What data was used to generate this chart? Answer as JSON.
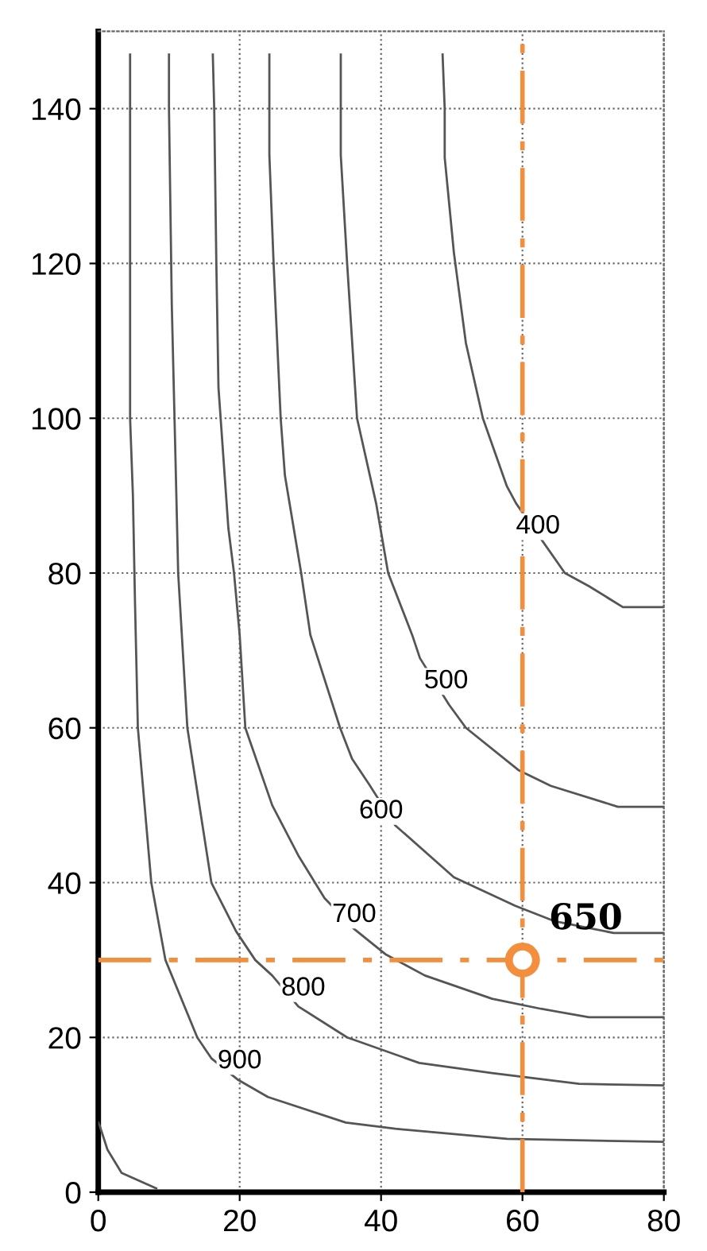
{
  "chart_data": {
    "type": "line",
    "xlim": [
      0,
      80
    ],
    "ylim": [
      0,
      150
    ],
    "xticks": [
      0,
      20,
      40,
      60,
      80
    ],
    "yticks": [
      0,
      20,
      40,
      60,
      80,
      100,
      120,
      140
    ],
    "grid": true,
    "line_style": "solid",
    "series": [
      {
        "color": "#555555",
        "x": [
          0,
          0.2,
          1.3,
          3.3,
          8.2
        ],
        "values": [
          9,
          8.6,
          5.5,
          2.5,
          0.5
        ]
      },
      {
        "color": "#555555",
        "x": [
          4.5,
          4.5,
          4.9,
          5.2,
          5.6,
          7.5,
          9.5,
          14,
          16,
          19.8,
          24,
          35,
          42,
          57.8,
          80
        ],
        "values": [
          147,
          100,
          90,
          76,
          60,
          40,
          30,
          20,
          17.3,
          14.5,
          12.3,
          9,
          8.2,
          6.9,
          6.5
        ]
      },
      {
        "color": "#555555",
        "x": [
          10,
          10,
          10.4,
          10.9,
          11.3,
          12.6,
          16,
          19.5,
          22.2,
          24.6,
          28.3,
          35.2,
          45.4,
          55.7,
          68,
          80
        ],
        "values": [
          147,
          140,
          114.6,
          95.6,
          80,
          60,
          40,
          33.7,
          30,
          28,
          24,
          20,
          16.7,
          15.4,
          14,
          13.8
        ]
      },
      {
        "color": "#555555",
        "x": [
          16.2,
          16.4,
          16.7,
          17,
          18.4,
          19.2,
          20,
          20.8,
          24.6,
          28.3,
          32,
          36.2,
          40.7,
          46.2,
          55.7,
          62.6,
          69.4,
          80
        ],
        "values": [
          147,
          140,
          120,
          104,
          85.8,
          80,
          72,
          60,
          50,
          43.5,
          38,
          34,
          30.7,
          28,
          25,
          23.7,
          22.6,
          22.6
        ]
      },
      {
        "color": "#555555",
        "x": [
          24.2,
          24.2,
          24.2,
          24.8,
          25.8,
          26.4,
          28.7,
          30,
          34.2,
          35.9,
          38.3,
          42,
          50.3,
          59,
          64.6,
          72.9,
          80
        ],
        "values": [
          147,
          140,
          134,
          120,
          100,
          92.6,
          80,
          72,
          60,
          56,
          52.7,
          47.4,
          40.7,
          37,
          35,
          33.5,
          33.5
        ]
      },
      {
        "color": "#555555",
        "x": [
          34.3,
          34.3,
          34.3,
          35.2,
          36.6,
          39.3,
          41,
          44.4,
          45.5,
          49.6,
          52,
          59.5,
          64,
          73.5,
          80
        ],
        "values": [
          147,
          140,
          134,
          120,
          100,
          89,
          80,
          72,
          69,
          63,
          60,
          54.5,
          52.5,
          49.8,
          49.8
        ]
      },
      {
        "color": "#555555",
        "x": [
          48.7,
          49,
          49,
          50.3,
          52,
          54.4,
          57.8,
          59.1,
          66,
          69.4,
          74.2,
          80
        ],
        "values": [
          147,
          140,
          133.7,
          121.4,
          109.7,
          100,
          91.2,
          89,
          80,
          78.3,
          75.6,
          75.6
        ]
      },
      {
        "type": "scatter",
        "color": "#f28e3c",
        "marker": "circle",
        "x": [
          60
        ],
        "values": [
          30
        ]
      }
    ],
    "ref_lines": [
      {
        "axis": "x",
        "value": 60,
        "color": "#f28e3c",
        "line_style": "dashed"
      },
      {
        "axis": "y",
        "value": 30,
        "color": "#f28e3c",
        "line_style": "dashed"
      }
    ],
    "annotations": [
      {
        "text": "400",
        "x": 62.2,
        "y": 86
      },
      {
        "text": "500",
        "x": 49.2,
        "y": 66
      },
      {
        "text": "600",
        "x": 40,
        "y": 49.2
      },
      {
        "text": "700",
        "x": 36.2,
        "y": 35.8
      },
      {
        "text": "800",
        "x": 29,
        "y": 26.3
      },
      {
        "text": "900",
        "x": 20,
        "y": 16.9
      },
      "650"
    ]
  }
}
